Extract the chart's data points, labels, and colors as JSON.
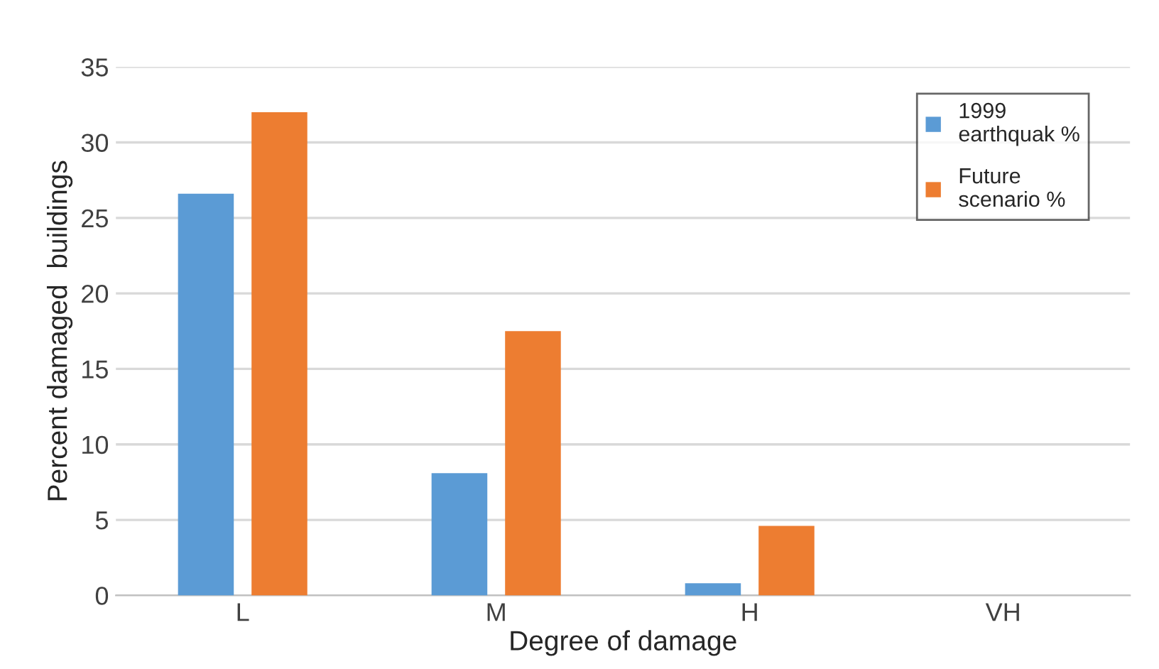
{
  "chart_data": {
    "type": "bar",
    "xlabel": "Degree of damage",
    "ylabel": "Percent damaged  buildings",
    "categories": [
      "L",
      "M",
      "H",
      "VH"
    ],
    "series": [
      {
        "name": "1999 earthquak %",
        "color": "#5b9bd5",
        "values": [
          26.6,
          8.1,
          0.8,
          0
        ]
      },
      {
        "name": "Future scenario %",
        "color": "#ed7d31",
        "values": [
          32,
          17.5,
          4.6,
          0
        ]
      }
    ],
    "ylim": [
      0,
      35
    ],
    "yticks": [
      0,
      5,
      10,
      15,
      20,
      25,
      30,
      35
    ],
    "grid": "y",
    "legend": "top right"
  }
}
